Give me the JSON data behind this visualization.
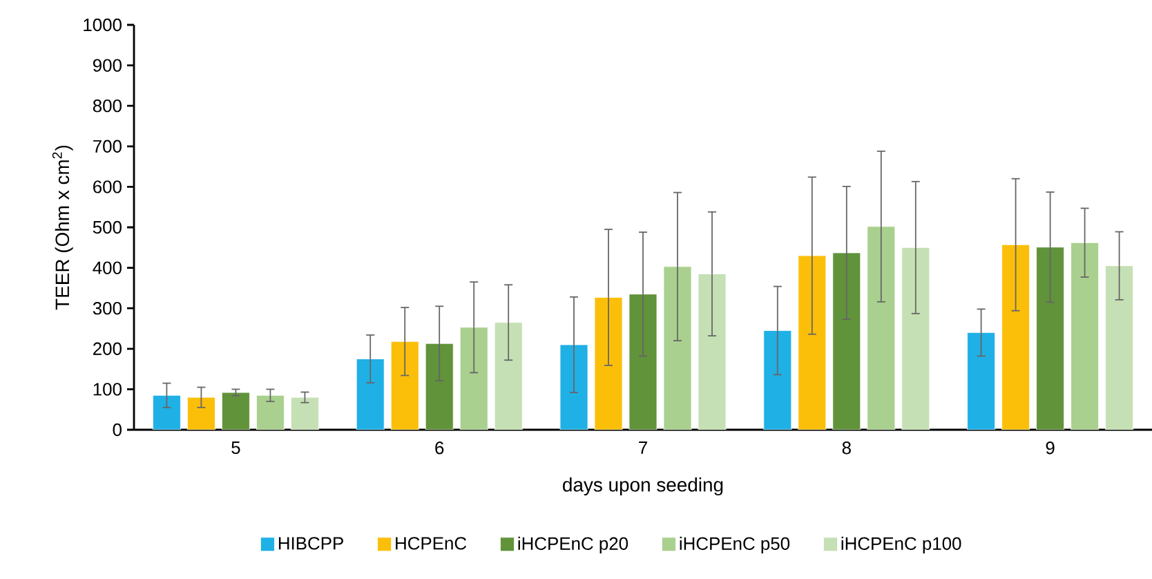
{
  "chart_data": {
    "type": "bar",
    "xlabel": "days upon seeding",
    "ylabel": "TEER (Ohm x cm$^{2}$)",
    "categories": [
      "5",
      "6",
      "7",
      "8",
      "9"
    ],
    "series": [
      {
        "name": "HIBCPP",
        "color": "#1fb0e6",
        "values": [
          85,
          175,
          210,
          245,
          240
        ],
        "errors": [
          30,
          59,
          118,
          109,
          58
        ]
      },
      {
        "name": "HCPEnC",
        "color": "#fbbf09",
        "values": [
          80,
          218,
          327,
          430,
          457
        ],
        "errors": [
          25,
          84,
          168,
          194,
          163
        ]
      },
      {
        "name": "iHCPEnC p20",
        "color": "#61933a",
        "values": [
          92,
          213,
          335,
          437,
          451
        ],
        "errors": [
          8,
          92,
          153,
          164,
          136
        ]
      },
      {
        "name": "iHCPEnC p50",
        "color": "#a9d08e",
        "values": [
          85,
          253,
          403,
          502,
          462
        ],
        "errors": [
          15,
          112,
          183,
          186,
          85
        ]
      },
      {
        "name": "iHCPEnC p100",
        "color": "#c5e0b4",
        "values": [
          80,
          265,
          385,
          450,
          405
        ],
        "errors": [
          13,
          93,
          153,
          163,
          84
        ]
      }
    ],
    "ylim": [
      0,
      1000
    ],
    "yticks": [
      0,
      100,
      200,
      300,
      400,
      500,
      600,
      700,
      800,
      900,
      1000
    ],
    "legend": "bottom"
  }
}
